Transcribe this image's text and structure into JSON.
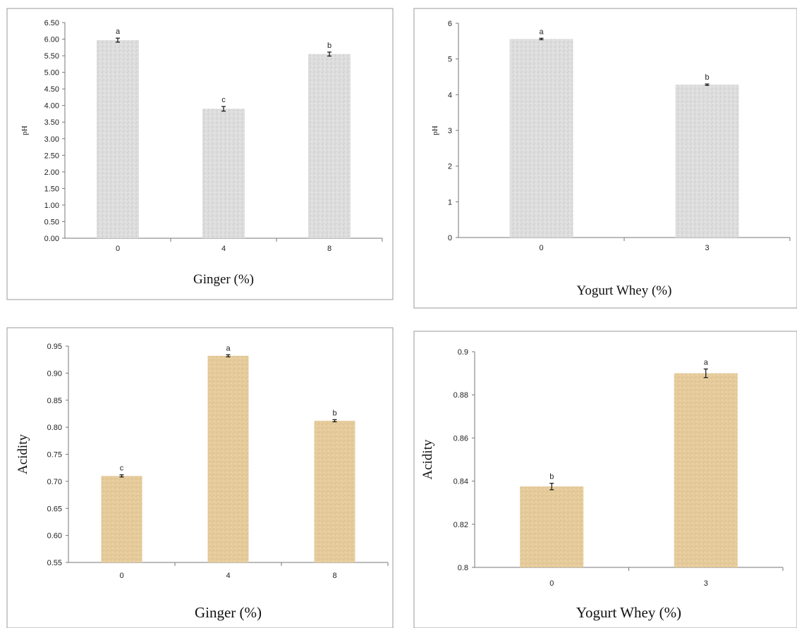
{
  "chart_data": [
    {
      "type": "bar",
      "categories": [
        "0",
        "4",
        "8"
      ],
      "values": [
        5.97,
        3.9,
        5.55
      ],
      "errors": [
        0.06,
        0.07,
        0.06
      ],
      "sig_letters": [
        "a",
        "c",
        "b"
      ],
      "xlabel": "Ginger (%)",
      "ylabel": "pH",
      "ylim": [
        0,
        6.5
      ],
      "yticks": [
        "0.00",
        "0.50",
        "1.00",
        "1.50",
        "2.00",
        "2.50",
        "3.00",
        "3.50",
        "4.00",
        "4.50",
        "5.00",
        "5.50",
        "6.00",
        "6.50"
      ],
      "fill": "#dcdcdc",
      "grid": false
    },
    {
      "type": "bar",
      "categories": [
        "0",
        "3"
      ],
      "values": [
        5.56,
        4.28
      ],
      "errors": [
        0.02,
        0.02
      ],
      "sig_letters": [
        "a",
        "b"
      ],
      "xlabel": "Yogurt Whey (%)",
      "ylabel": "pH",
      "ylim": [
        0,
        6
      ],
      "yticks": [
        "0",
        "1",
        "2",
        "3",
        "4",
        "5",
        "6"
      ],
      "fill": "#dcdcdc",
      "grid": false
    },
    {
      "type": "bar",
      "categories": [
        "0",
        "4",
        "8"
      ],
      "values": [
        0.71,
        0.932,
        0.812
      ],
      "errors": [
        0.002,
        0.002,
        0.002
      ],
      "sig_letters": [
        "c",
        "a",
        "b"
      ],
      "xlabel": "Ginger (%)",
      "ylabel": "Acidity",
      "ylim": [
        0.55,
        0.95
      ],
      "yticks": [
        "0.55",
        "0.60",
        "0.65",
        "0.70",
        "0.75",
        "0.80",
        "0.85",
        "0.90",
        "0.95"
      ],
      "fill": "#e8cfa0",
      "grid": false
    },
    {
      "type": "bar",
      "categories": [
        "0",
        "3"
      ],
      "values": [
        0.8375,
        0.89
      ],
      "errors": [
        0.0015,
        0.002
      ],
      "sig_letters": [
        "b",
        "a"
      ],
      "xlabel": "Yogurt Whey (%)",
      "ylabel": "Acidity",
      "ylim": [
        0.8,
        0.9
      ],
      "yticks": [
        "0.8",
        "0.82",
        "0.84",
        "0.86",
        "0.88",
        "0.9"
      ],
      "fill": "#e8cfa0",
      "grid": false
    }
  ]
}
